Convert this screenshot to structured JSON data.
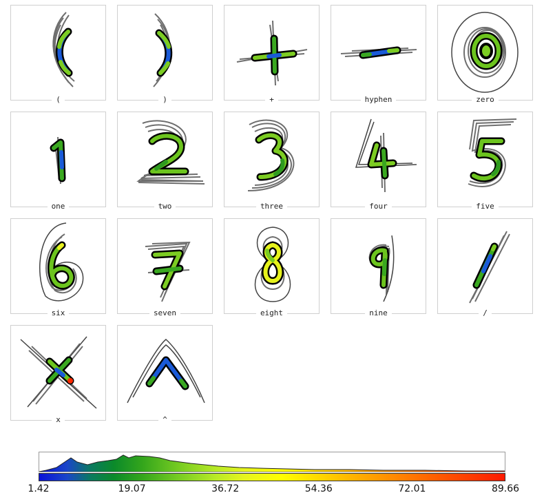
{
  "cards": [
    {
      "label": "(",
      "name": "open-paren"
    },
    {
      "label": ")",
      "name": "close-paren"
    },
    {
      "label": "+",
      "name": "plus"
    },
    {
      "label": "hyphen",
      "name": "hyphen"
    },
    {
      "label": "zero",
      "name": "zero"
    },
    {
      "label": "one",
      "name": "one"
    },
    {
      "label": "two",
      "name": "two"
    },
    {
      "label": "three",
      "name": "three"
    },
    {
      "label": "four",
      "name": "four"
    },
    {
      "label": "five",
      "name": "five"
    },
    {
      "label": "six",
      "name": "six"
    },
    {
      "label": "seven",
      "name": "seven"
    },
    {
      "label": "eight",
      "name": "eight"
    },
    {
      "label": "nine",
      "name": "nine"
    },
    {
      "label": "/",
      "name": "slash"
    },
    {
      "label": "x",
      "name": "x"
    },
    {
      "label": "^",
      "name": "caret"
    }
  ],
  "legend": {
    "ticks": [
      "1.42",
      "19.07",
      "36.72",
      "54.36",
      "72.01",
      "89.66"
    ],
    "colors": {
      "low": "#0a10d8",
      "mid_low": "#0b8a2a",
      "mid": "#b9ea26",
      "mid_high": "#ffff00",
      "high": "#ff1a00"
    }
  }
}
